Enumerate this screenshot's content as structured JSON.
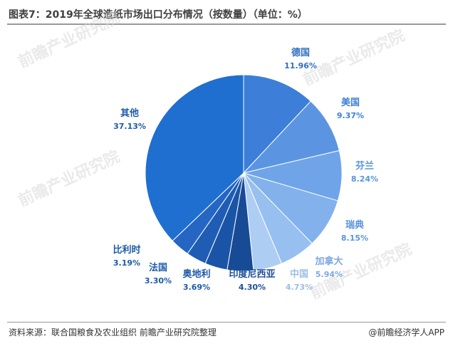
{
  "title": "图表7：2019年全球造纸市场出口分布情况（按数量）（单位：%）",
  "footer": {
    "source": "资料来源：联合国粮食及农业组织 前瞻产业研究院整理",
    "brand": "@前瞻经济学人APP"
  },
  "watermark": "前瞻产业研究院",
  "chart_data": {
    "type": "pie",
    "title": "图表7：2019年全球造纸市场出口分布情况（按数量）（单位：%）",
    "unit": "%",
    "slices": [
      {
        "name": "德国",
        "value": 11.96,
        "label": "11.96%",
        "color": "#3c7ed8",
        "text_color": "#2f6fc4"
      },
      {
        "name": "美国",
        "value": 9.37,
        "label": "9.37%",
        "color": "#5b95e2",
        "text_color": "#3f80d6"
      },
      {
        "name": "芬兰",
        "value": 8.24,
        "label": "8.24%",
        "color": "#6fa4e8",
        "text_color": "#5a95dd"
      },
      {
        "name": "瑞典",
        "value": 8.15,
        "label": "8.15%",
        "color": "#82b1ec",
        "text_color": "#5a95dd"
      },
      {
        "name": "加拿大",
        "value": 5.94,
        "label": "5.94%",
        "color": "#97bff0",
        "text_color": "#7ea9e3"
      },
      {
        "name": "中国",
        "value": 4.73,
        "label": "4.73%",
        "color": "#aecdf3",
        "text_color": "#9dbde8"
      },
      {
        "name": "印度尼西亚",
        "value": 4.3,
        "label": "4.30%",
        "color": "#174b96",
        "text_color": "#1d4f99"
      },
      {
        "name": "奥地利",
        "value": 3.69,
        "label": "3.69%",
        "color": "#1a54a6",
        "text_color": "#1d5aa8"
      },
      {
        "name": "法国",
        "value": 3.3,
        "label": "3.30%",
        "color": "#1f5db4",
        "text_color": "#1d5aa8"
      },
      {
        "name": "比利时",
        "value": 3.19,
        "label": "3.19%",
        "color": "#2466c2",
        "text_color": "#1d5aa8"
      },
      {
        "name": "其他",
        "value": 37.13,
        "label": "37.13%",
        "color": "#1e6fd0",
        "text_color": "#1d5aa8"
      }
    ]
  }
}
